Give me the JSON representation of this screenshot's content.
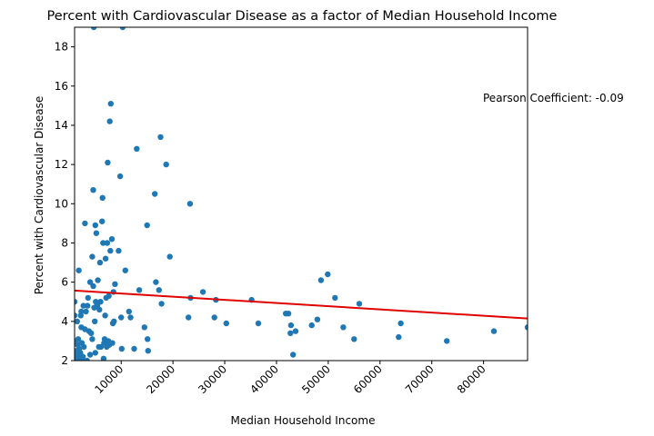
{
  "chart_data": {
    "type": "scatter",
    "title": "Percent with Cardiovascular Disease as a factor of Median Household Income",
    "xlabel": "Median Household Income",
    "ylabel": "Percent with Cardiovascular Disease",
    "xlim": [
      1000,
      88500
    ],
    "ylim": [
      2,
      19
    ],
    "x_ticks": [
      10000,
      20000,
      30000,
      40000,
      50000,
      60000,
      70000,
      80000
    ],
    "y_ticks": [
      2,
      4,
      6,
      8,
      10,
      12,
      14,
      16,
      18
    ],
    "grid": false,
    "legend": "none",
    "annotation": "Pearson Coefficient: -0.09",
    "point_color": "#1f77b4",
    "regression_color": "#e00000",
    "regression": {
      "x_start": 1000,
      "y_start": 5.57,
      "x_end": 88500,
      "y_end": 4.15
    },
    "points": [
      [
        1200,
        2.1
      ],
      [
        1300,
        2.3
      ],
      [
        1400,
        2.5
      ],
      [
        1500,
        2.0
      ],
      [
        1600,
        2.8
      ],
      [
        1700,
        3.1
      ],
      [
        1800,
        2.2
      ],
      [
        1900,
        2.6
      ],
      [
        2000,
        2.0
      ],
      [
        2100,
        2.4
      ],
      [
        2200,
        4.3
      ],
      [
        2300,
        3.7
      ],
      [
        2400,
        2.9
      ],
      [
        2500,
        2.0
      ],
      [
        2600,
        2.2
      ],
      [
        2700,
        4.8
      ],
      [
        2800,
        2.7
      ],
      [
        3000,
        9.0
      ],
      [
        3200,
        4.5
      ],
      [
        3400,
        2.0
      ],
      [
        3600,
        5.2
      ],
      [
        3800,
        3.5
      ],
      [
        4000,
        2.3
      ],
      [
        4200,
        3.4
      ],
      [
        4400,
        3.1
      ],
      [
        4600,
        5.8
      ],
      [
        4800,
        4.7
      ],
      [
        5000,
        2.4
      ],
      [
        1000,
        5.0
      ],
      [
        1000,
        4.3
      ],
      [
        1000,
        3.0
      ],
      [
        1500,
        4.0
      ],
      [
        1800,
        6.6
      ],
      [
        2300,
        4.5
      ],
      [
        3000,
        3.6
      ],
      [
        3500,
        4.8
      ],
      [
        4000,
        6.0
      ],
      [
        4400,
        7.3
      ],
      [
        4600,
        10.7
      ],
      [
        4700,
        19.0
      ],
      [
        4900,
        4.0
      ],
      [
        5000,
        8.9
      ],
      [
        5100,
        5.0
      ],
      [
        5200,
        8.5
      ],
      [
        5400,
        4.8
      ],
      [
        5500,
        6.1
      ],
      [
        5700,
        2.7
      ],
      [
        5800,
        4.6
      ],
      [
        5900,
        7.0
      ],
      [
        6000,
        5.0
      ],
      [
        6100,
        2.7
      ],
      [
        6300,
        9.1
      ],
      [
        6400,
        10.3
      ],
      [
        6500,
        8.0
      ],
      [
        6600,
        2.1
      ],
      [
        6700,
        2.9
      ],
      [
        6800,
        3.1
      ],
      [
        6900,
        4.3
      ],
      [
        7000,
        7.2
      ],
      [
        7100,
        5.2
      ],
      [
        7200,
        2.7
      ],
      [
        7300,
        8.0
      ],
      [
        7400,
        12.1
      ],
      [
        7500,
        3.0
      ],
      [
        7600,
        5.3
      ],
      [
        7700,
        2.8
      ],
      [
        7800,
        14.2
      ],
      [
        7900,
        7.6
      ],
      [
        8000,
        15.1
      ],
      [
        8100,
        1.8
      ],
      [
        8200,
        8.2
      ],
      [
        8300,
        2.9
      ],
      [
        8400,
        3.9
      ],
      [
        8500,
        5.5
      ],
      [
        8600,
        4.0
      ],
      [
        8800,
        5.9
      ],
      [
        9500,
        7.6
      ],
      [
        9800,
        11.4
      ],
      [
        10000,
        4.2
      ],
      [
        10100,
        2.6
      ],
      [
        10300,
        19.0
      ],
      [
        10800,
        6.6
      ],
      [
        11500,
        4.5
      ],
      [
        11800,
        4.2
      ],
      [
        12500,
        2.6
      ],
      [
        13000,
        12.8
      ],
      [
        13500,
        5.6
      ],
      [
        14500,
        3.7
      ],
      [
        15000,
        8.9
      ],
      [
        15100,
        3.1
      ],
      [
        15200,
        2.5
      ],
      [
        16500,
        10.5
      ],
      [
        16700,
        6.0
      ],
      [
        17300,
        5.6
      ],
      [
        17600,
        13.4
      ],
      [
        17800,
        4.9
      ],
      [
        18700,
        12.0
      ],
      [
        19400,
        7.3
      ],
      [
        23000,
        4.2
      ],
      [
        23300,
        10.0
      ],
      [
        23400,
        5.2
      ],
      [
        25800,
        5.5
      ],
      [
        28000,
        4.2
      ],
      [
        28300,
        5.1
      ],
      [
        30300,
        3.9
      ],
      [
        35200,
        5.1
      ],
      [
        36500,
        3.9
      ],
      [
        41800,
        4.4
      ],
      [
        42300,
        4.4
      ],
      [
        42700,
        3.4
      ],
      [
        42800,
        3.8
      ],
      [
        43200,
        2.3
      ],
      [
        43700,
        3.5
      ],
      [
        46800,
        3.8
      ],
      [
        47900,
        4.1
      ],
      [
        48600,
        6.1
      ],
      [
        49900,
        6.4
      ],
      [
        51300,
        5.2
      ],
      [
        52900,
        3.7
      ],
      [
        55000,
        3.1
      ],
      [
        56000,
        4.9
      ],
      [
        63600,
        3.2
      ],
      [
        64000,
        3.9
      ],
      [
        72900,
        3.0
      ],
      [
        82000,
        3.5
      ],
      [
        88500,
        3.7
      ]
    ]
  }
}
